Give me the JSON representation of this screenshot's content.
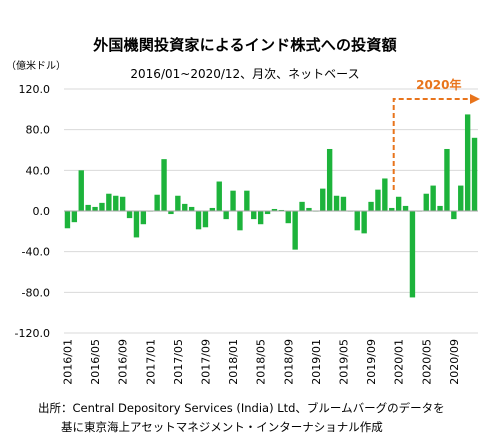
{
  "title": "外国機関投資家によるインド株式への投資額",
  "subtitle": "2016/01~2020/12、月次、ネットベース",
  "source": {
    "line1": "出所：Central Depository Services (India) Ltd、ブルームバーグのデータを",
    "line2": "基に東京海上アセットマネジメント・インターナショナル作成"
  },
  "chart_data": {
    "type": "bar",
    "title": "外国機関投資家によるインド株式への投資額",
    "subtitle": "2016/01~2020/12、月次、ネットベース",
    "ylabel": "（億米ドル）",
    "xlabel": "",
    "ylim": [
      -120,
      120
    ],
    "yticks": [
      -120,
      -80,
      -40,
      0,
      40,
      80,
      120
    ],
    "ytick_labels": [
      "-120.0",
      "-80.0",
      "-40.0",
      "0.0",
      "40.0",
      "80.0",
      "120.0"
    ],
    "grid": true,
    "bar_color": "#1db33b",
    "annotation": {
      "text": "2020年",
      "color": "#e8741c",
      "from": "2020/01",
      "to": "2020/12"
    },
    "categories": [
      "2016/01",
      "2016/02",
      "2016/03",
      "2016/04",
      "2016/05",
      "2016/06",
      "2016/07",
      "2016/08",
      "2016/09",
      "2016/10",
      "2016/11",
      "2016/12",
      "2017/01",
      "2017/02",
      "2017/03",
      "2017/04",
      "2017/05",
      "2017/06",
      "2017/07",
      "2017/08",
      "2017/09",
      "2017/10",
      "2017/11",
      "2017/12",
      "2018/01",
      "2018/02",
      "2018/03",
      "2018/04",
      "2018/05",
      "2018/06",
      "2018/07",
      "2018/08",
      "2018/09",
      "2018/10",
      "2018/11",
      "2018/12",
      "2019/01",
      "2019/02",
      "2019/03",
      "2019/04",
      "2019/05",
      "2019/06",
      "2019/07",
      "2019/08",
      "2019/09",
      "2019/10",
      "2019/11",
      "2019/12",
      "2020/01",
      "2020/02",
      "2020/03",
      "2020/04",
      "2020/05",
      "2020/06",
      "2020/07",
      "2020/08",
      "2020/09",
      "2020/10",
      "2020/11",
      "2020/12"
    ],
    "tick_labels": [
      "2016/01",
      "2016/05",
      "2016/09",
      "2017/01",
      "2017/05",
      "2017/09",
      "2018/01",
      "2018/05",
      "2018/09",
      "2019/01",
      "2019/05",
      "2019/09",
      "2020/01",
      "2020/05",
      "2020/09"
    ],
    "values": [
      -17,
      -11,
      40,
      6,
      4,
      8,
      17,
      15,
      14,
      -7,
      -26,
      -13,
      0,
      16,
      51,
      -3,
      15,
      7,
      4,
      -18,
      -16,
      3,
      29,
      -8,
      20,
      -19,
      20,
      -8,
      -13,
      -3,
      2,
      1,
      -12,
      -38,
      9,
      3,
      0,
      22,
      61,
      15,
      14,
      0,
      -19,
      -22,
      9,
      21,
      32,
      3,
      14,
      5,
      -85,
      0,
      17,
      25,
      5,
      61,
      -8,
      25,
      95,
      72
    ]
  }
}
